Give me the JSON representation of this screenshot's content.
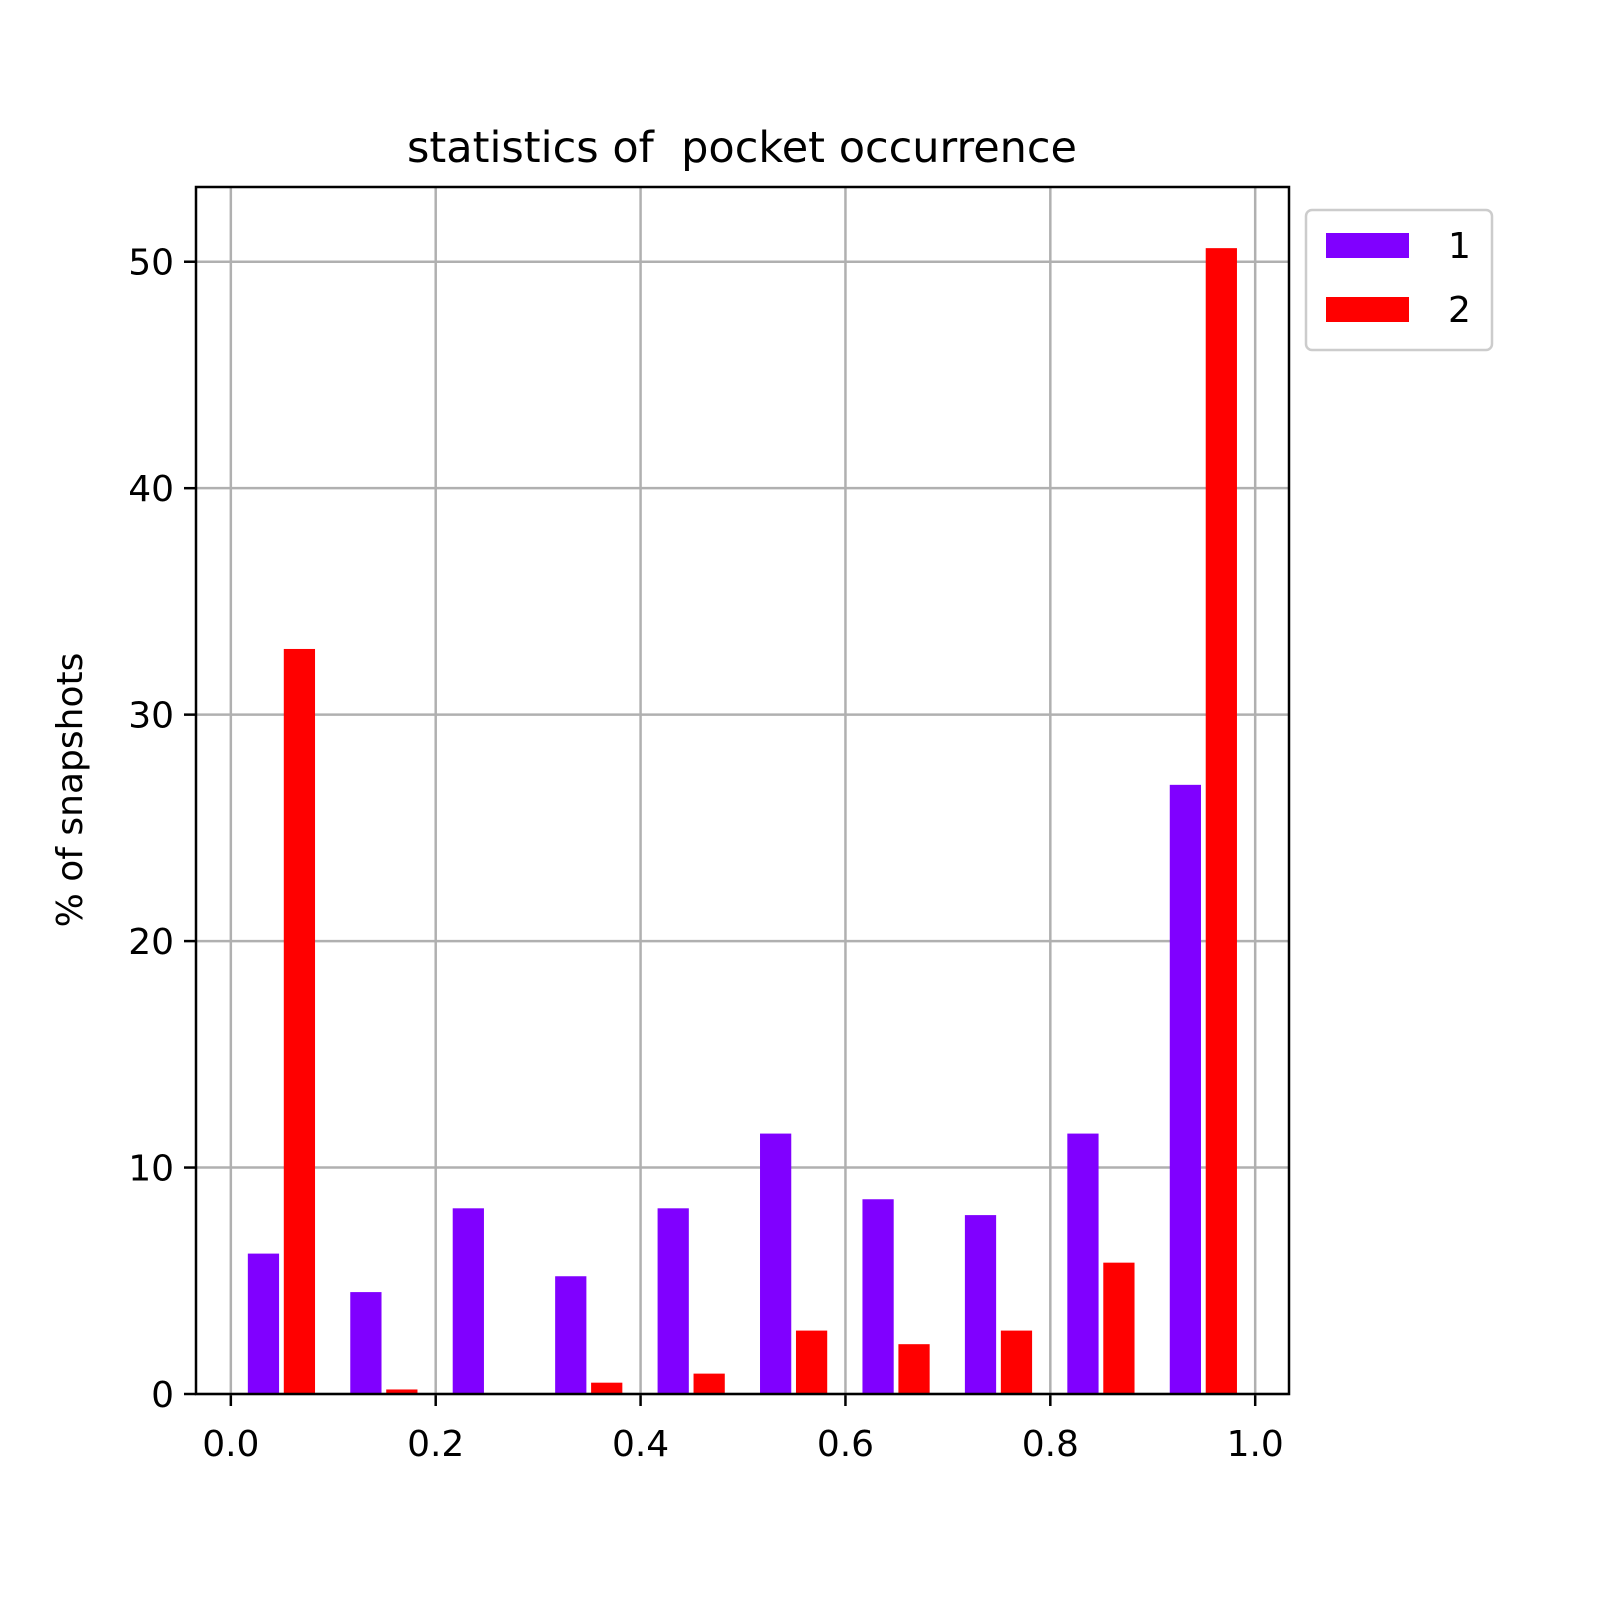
{
  "chart_data": {
    "type": "histogram",
    "title": "statistics of  pocket occurrence",
    "ylabel": "% of snapshots",
    "bins": [
      0,
      0.1,
      0.2,
      0.3,
      0.4,
      0.5,
      0.6,
      0.7,
      0.8,
      0.9,
      1
    ],
    "series": [
      {
        "name": "1",
        "color": "#8000ff",
        "values": [
          6.2,
          4.5,
          8.2,
          5.2,
          8.2,
          11.5,
          8.6,
          7.9,
          11.5,
          26.9
        ]
      },
      {
        "name": "2",
        "color": "#ff0000",
        "values": [
          32.9,
          0.2,
          0,
          0.5,
          0.9,
          2.8,
          2.2,
          2.8,
          5.8,
          50.6
        ]
      }
    ],
    "xlim": [
      -0.034,
      1.033
    ],
    "ylim": [
      0,
      53.3
    ],
    "xticks": [
      {
        "value": 0,
        "label": "0.0"
      },
      0.2,
      0.4,
      0.6,
      0.8,
      {
        "value": 1,
        "label": "1.0"
      }
    ],
    "yticks": [
      0,
      10,
      20,
      30,
      40,
      50
    ],
    "grid": true,
    "legend": "outside upper right"
  }
}
